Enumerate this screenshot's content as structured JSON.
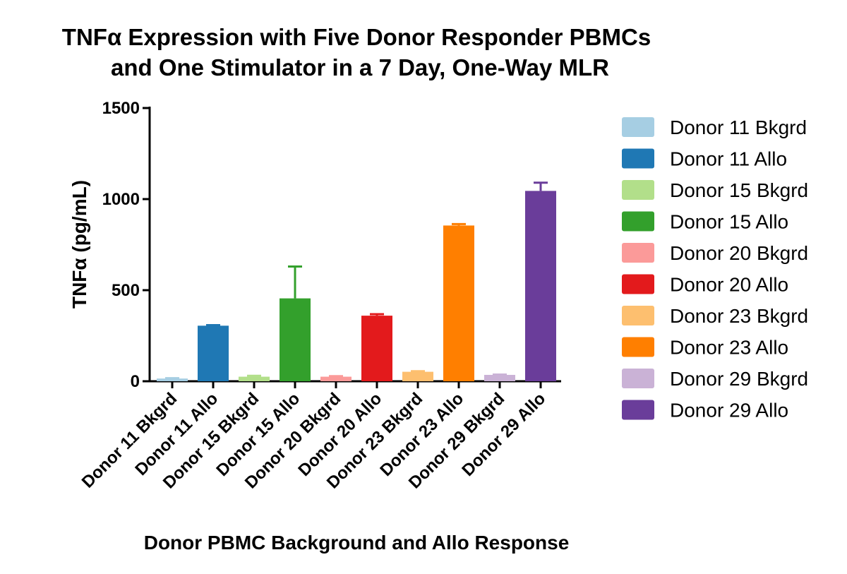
{
  "chart_data": {
    "type": "bar",
    "title_lines": [
      "TNFα Expression with Five Donor Responder PBMCs",
      "and One Stimulator in a 7 Day, One-Way MLR"
    ],
    "xlabel": "Donor PBMC Background and Allo Response",
    "ylabel": "TNFα (pg/mL)",
    "ylim": [
      0,
      1500
    ],
    "yticks": [
      "0",
      "500",
      "1000",
      "1500"
    ],
    "ytick_values": [
      0,
      500,
      1000,
      1500
    ],
    "categories": [
      "Donor 11 Bkgrd",
      "Donor 11 Allo",
      "Donor 15 Bkgrd",
      "Donor 15 Allo",
      "Donor 20 Bkgrd",
      "Donor 20 Allo",
      "Donor 23 Bkgrd",
      "Donor 23 Allo",
      "Donor 29 Bkgrd",
      "Donor 29 Allo"
    ],
    "values": [
      15,
      305,
      25,
      455,
      25,
      360,
      52,
      855,
      35,
      1045
    ],
    "errors": [
      2,
      3,
      5,
      175,
      3,
      8,
      3,
      8,
      2,
      45
    ],
    "colors": [
      "#a6cee3",
      "#1f78b4",
      "#b2df8a",
      "#33a02c",
      "#fb9a99",
      "#e31a1c",
      "#fdbf6f",
      "#ff7f00",
      "#cab2d6",
      "#6a3d9a"
    ],
    "legend": [
      "Donor 11 Bkgrd",
      "Donor 11 Allo",
      "Donor 15 Bkgrd",
      "Donor 15 Allo",
      "Donor 20 Bkgrd",
      "Donor 20 Allo",
      "Donor 23 Bkgrd",
      "Donor 23 Allo",
      "Donor 29 Bkgrd",
      "Donor 29 Allo"
    ],
    "legend_position": "right"
  }
}
